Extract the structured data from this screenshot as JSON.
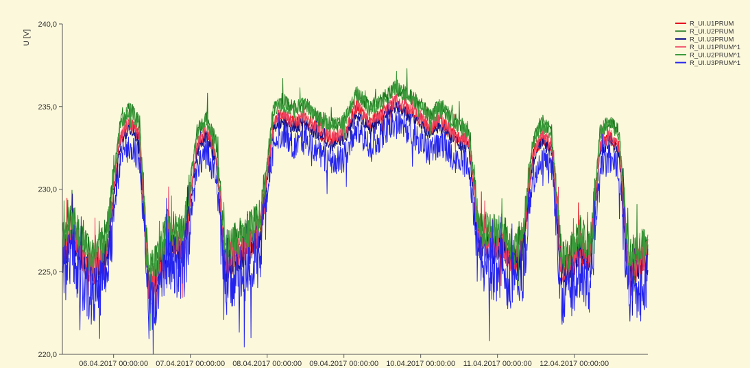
{
  "chart_data": {
    "type": "line",
    "ylabel": "U [V]",
    "ylim": [
      220,
      240
    ],
    "y_ticks": [
      {
        "value": 240,
        "label": "240,0"
      },
      {
        "value": 235,
        "label": "235,0"
      },
      {
        "value": 230,
        "label": "230,0"
      },
      {
        "value": 225,
        "label": "225,0"
      },
      {
        "value": 220,
        "label": "220,0"
      }
    ],
    "x_unit": "days",
    "xlim": [
      "2017-04-05 08:00",
      "2017-04-12 23:00"
    ],
    "x_ticks": [
      {
        "value": "2017-04-06 00:00",
        "label": "06.04.2017 00:00:00"
      },
      {
        "value": "2017-04-07 00:00",
        "label": "07.04.2017 00:00:00"
      },
      {
        "value": "2017-04-08 00:00",
        "label": "08.04.2017 00:00:00"
      },
      {
        "value": "2017-04-09 00:00",
        "label": "09.04.2017 00:00:00"
      },
      {
        "value": "2017-04-10 00:00",
        "label": "10.04.2017 00:00:00"
      },
      {
        "value": "2017-04-11 00:00",
        "label": "11.04.2017 00:00:00"
      },
      {
        "value": "2017-04-12 00:00",
        "label": "12.04.2017 00:00:00"
      }
    ],
    "grid": false,
    "legend_position": "top-right",
    "base_profile": {
      "x": [
        "2017-04-05 08:00",
        "2017-04-05 11:00",
        "2017-04-05 14:00",
        "2017-04-05 17:00",
        "2017-04-05 20:00",
        "2017-04-05 22:00",
        "2017-04-06 02:00",
        "2017-04-06 05:00",
        "2017-04-06 08:00",
        "2017-04-06 11:00",
        "2017-04-06 14:00",
        "2017-04-06 17:00",
        "2017-04-06 20:00",
        "2017-04-06 22:00",
        "2017-04-07 02:00",
        "2017-04-07 05:00",
        "2017-04-07 08:00",
        "2017-04-07 11:00",
        "2017-04-07 14:00",
        "2017-04-07 17:00",
        "2017-04-07 20:00",
        "2017-04-07 22:00",
        "2017-04-08 02:00",
        "2017-04-08 05:00",
        "2017-04-08 08:00",
        "2017-04-08 12:00",
        "2017-04-08 16:00",
        "2017-04-08 20:00",
        "2017-04-09 00:00",
        "2017-04-09 04:00",
        "2017-04-09 08:00",
        "2017-04-09 12:00",
        "2017-04-09 16:00",
        "2017-04-09 20:00",
        "2017-04-10 00:00",
        "2017-04-10 03:00",
        "2017-04-10 06:00",
        "2017-04-10 09:00",
        "2017-04-10 12:00",
        "2017-04-10 15:00",
        "2017-04-10 18:00",
        "2017-04-10 22:00",
        "2017-04-11 02:00",
        "2017-04-11 05:00",
        "2017-04-11 08:00",
        "2017-04-11 11:00",
        "2017-04-11 14:00",
        "2017-04-11 17:00",
        "2017-04-11 20:00",
        "2017-04-11 22:00",
        "2017-04-12 02:00",
        "2017-04-12 05:00",
        "2017-04-12 08:00",
        "2017-04-12 11:00",
        "2017-04-12 14:00",
        "2017-04-12 17:00",
        "2017-04-12 20:00",
        "2017-04-12 23:00"
      ],
      "y": [
        226.0,
        227.5,
        226.0,
        225.0,
        225.6,
        226.5,
        233.0,
        234.0,
        233.2,
        224.0,
        225.0,
        227.0,
        226.5,
        226.5,
        232.5,
        233.5,
        232.0,
        225.5,
        226.0,
        226.5,
        227.0,
        227.5,
        234.0,
        234.5,
        234.0,
        234.3,
        233.5,
        233.0,
        233.2,
        235.0,
        234.0,
        234.5,
        235.3,
        234.8,
        234.2,
        233.5,
        234.2,
        233.5,
        233.0,
        232.8,
        227.0,
        226.5,
        226.5,
        225.5,
        226.5,
        232.0,
        233.2,
        232.5,
        225.0,
        225.0,
        226.5,
        225.5,
        232.5,
        233.2,
        232.5,
        225.0,
        225.5,
        226.0
      ]
    },
    "series": [
      {
        "name": "R_UI.U1PRUM",
        "color": "#e8101e",
        "offset": 0.0,
        "noise": 0.45
      },
      {
        "name": "R_UI.U2PRUM",
        "color": "#1e7a1e",
        "offset": 0.9,
        "noise": 0.5
      },
      {
        "name": "R_UI.U3PRUM",
        "color": "#12128a",
        "offset": -0.3,
        "noise": 0.4
      },
      {
        "name": "R_UI.U1PRUM^1",
        "color": "#f04060",
        "offset": 0.1,
        "noise": 0.45
      },
      {
        "name": "R_UI.U2PRUM^1",
        "color": "#3a9a3a",
        "offset": 0.8,
        "noise": 0.5
      },
      {
        "name": "R_UI.U3PRUM^1",
        "color": "#2424f0",
        "offset": -1.3,
        "noise": 0.9
      }
    ]
  }
}
